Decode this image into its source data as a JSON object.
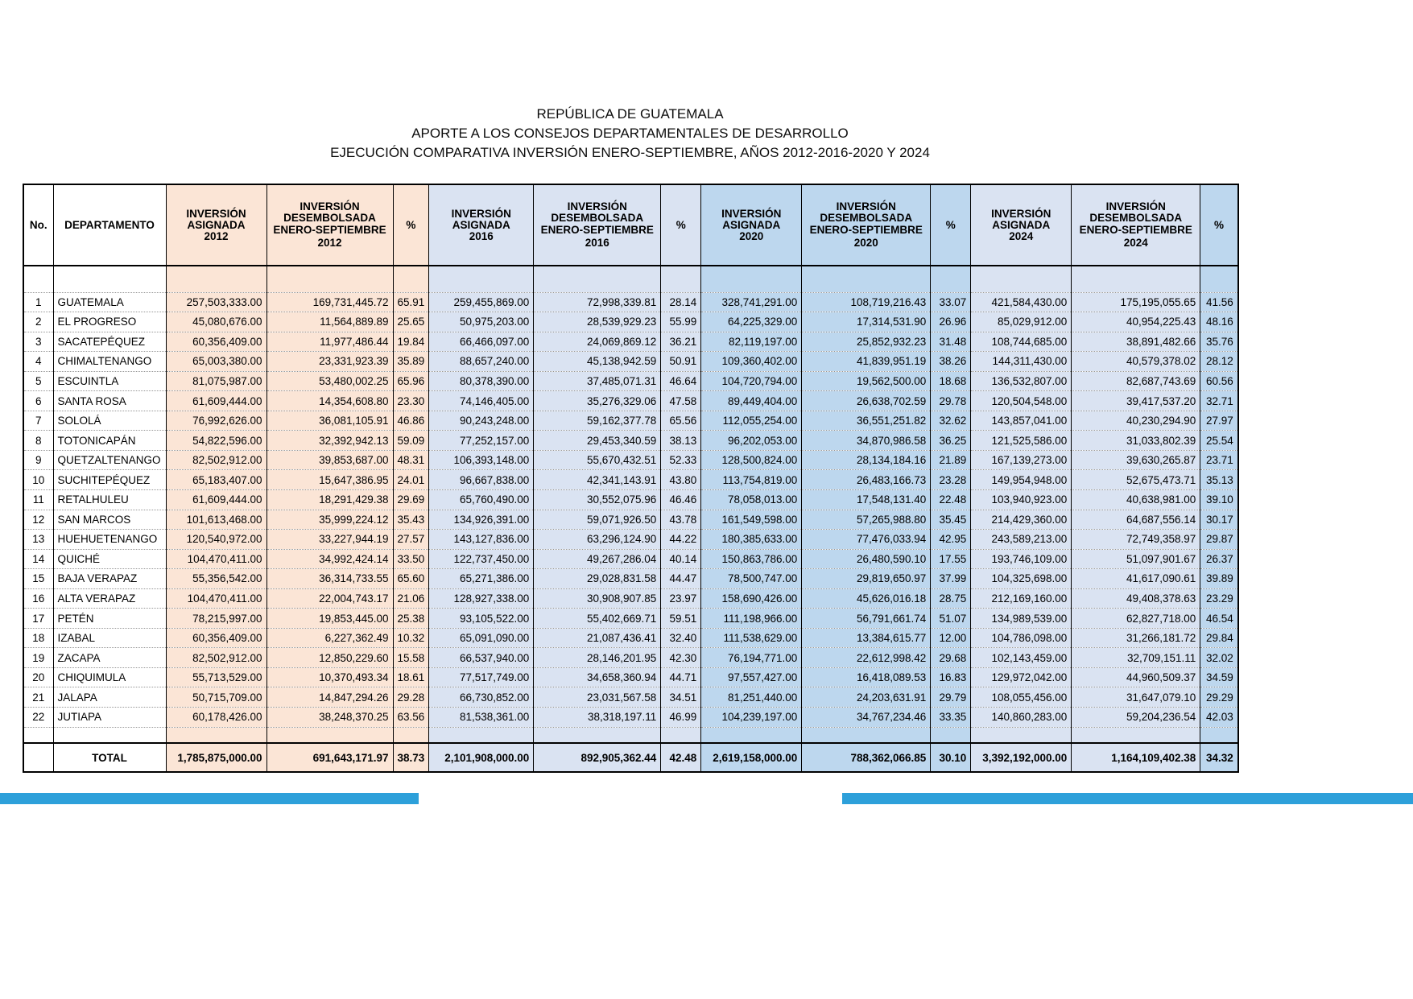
{
  "title": {
    "line1": "REPÚBLICA DE GUATEMALA",
    "line2": "APORTE A LOS CONSEJOS DEPARTAMENTALES DE DESARROLLO",
    "line3": "EJECUCIÓN COMPARATIVA INVERSIÓN ENERO-SEPTIEMBRE, AÑOS 2012-2016-2020 Y 2024"
  },
  "colors": {
    "group_2012": "#fbe5d6",
    "group_2016": "#dae3f2",
    "group_2020": "#bdd7ee",
    "group_2024": "#dae3f2",
    "pct_2024": "#bdd7ee",
    "accent_bar": "#2da0da",
    "border": "#000000",
    "dotted_separator": "#969696"
  },
  "table": {
    "fixed_headers": {
      "no": "No.",
      "departamento": "DEPARTAMENTO"
    },
    "year_groups": [
      {
        "year": "2012",
        "asignada_l1": "INVERSIÓN",
        "asignada_l2": "ASIGNADA",
        "desembolsada_l1": "INVERSIÓN",
        "desembolsada_l2": "DESEMBOLSADA",
        "desembolsada_l3": "ENERO-SEPTIEMBRE",
        "pct": "%"
      },
      {
        "year": "2016",
        "asignada_l1": "INVERSIÓN",
        "asignada_l2": "ASIGNADA",
        "desembolsada_l1": "INVERSIÓN",
        "desembolsada_l2": "DESEMBOLSADA",
        "desembolsada_l3": "ENERO-SEPTIEMBRE",
        "pct": "%"
      },
      {
        "year": "2020",
        "asignada_l1": "INVERSIÓN",
        "asignada_l2": "ASIGNADA",
        "desembolsada_l1": "INVERSIÓN",
        "desembolsada_l2": "DESEMBOLSADA",
        "desembolsada_l3": "ENERO-SEPTIEMBRE",
        "pct": "%"
      },
      {
        "year": "2024",
        "asignada_l1": "INVERSIÓN",
        "asignada_l2": "ASIGNADA",
        "desembolsada_l1": "INVERSIÓN",
        "desembolsada_l2": "DESEMBOLSADA",
        "desembolsada_l3": "ENERO-SEPTIEMBRE",
        "pct": "%"
      }
    ],
    "rows": [
      {
        "no": "1",
        "dept": "GUATEMALA",
        "values": [
          "257,503,333.00",
          "169,731,445.72",
          "65.91",
          "259,455,869.00",
          "72,998,339.81",
          "28.14",
          "328,741,291.00",
          "108,719,216.43",
          "33.07",
          "421,584,430.00",
          "175,195,055.65",
          "41.56"
        ]
      },
      {
        "no": "2",
        "dept": "EL PROGRESO",
        "values": [
          "45,080,676.00",
          "11,564,889.89",
          "25.65",
          "50,975,203.00",
          "28,539,929.23",
          "55.99",
          "64,225,329.00",
          "17,314,531.90",
          "26.96",
          "85,029,912.00",
          "40,954,225.43",
          "48.16"
        ]
      },
      {
        "no": "3",
        "dept": "SACATEPÉQUEZ",
        "values": [
          "60,356,409.00",
          "11,977,486.44",
          "19.84",
          "66,466,097.00",
          "24,069,869.12",
          "36.21",
          "82,119,197.00",
          "25,852,932.23",
          "31.48",
          "108,744,685.00",
          "38,891,482.66",
          "35.76"
        ]
      },
      {
        "no": "4",
        "dept": "CHIMALTENANGO",
        "values": [
          "65,003,380.00",
          "23,331,923.39",
          "35.89",
          "88,657,240.00",
          "45,138,942.59",
          "50.91",
          "109,360,402.00",
          "41,839,951.19",
          "38.26",
          "144,311,430.00",
          "40,579,378.02",
          "28.12"
        ]
      },
      {
        "no": "5",
        "dept": "ESCUINTLA",
        "values": [
          "81,075,987.00",
          "53,480,002.25",
          "65.96",
          "80,378,390.00",
          "37,485,071.31",
          "46.64",
          "104,720,794.00",
          "19,562,500.00",
          "18.68",
          "136,532,807.00",
          "82,687,743.69",
          "60.56"
        ]
      },
      {
        "no": "6",
        "dept": "SANTA ROSA",
        "values": [
          "61,609,444.00",
          "14,354,608.80",
          "23.30",
          "74,146,405.00",
          "35,276,329.06",
          "47.58",
          "89,449,404.00",
          "26,638,702.59",
          "29.78",
          "120,504,548.00",
          "39,417,537.20",
          "32.71"
        ]
      },
      {
        "no": "7",
        "dept": "SOLOLÁ",
        "values": [
          "76,992,626.00",
          "36,081,105.91",
          "46.86",
          "90,243,248.00",
          "59,162,377.78",
          "65.56",
          "112,055,254.00",
          "36,551,251.82",
          "32.62",
          "143,857,041.00",
          "40,230,294.90",
          "27.97"
        ]
      },
      {
        "no": "8",
        "dept": "TOTONICAPÁN",
        "values": [
          "54,822,596.00",
          "32,392,942.13",
          "59.09",
          "77,252,157.00",
          "29,453,340.59",
          "38.13",
          "96,202,053.00",
          "34,870,986.58",
          "36.25",
          "121,525,586.00",
          "31,033,802.39",
          "25.54"
        ]
      },
      {
        "no": "9",
        "dept": "QUETZALTENANGO",
        "values": [
          "82,502,912.00",
          "39,853,687.00",
          "48.31",
          "106,393,148.00",
          "55,670,432.51",
          "52.33",
          "128,500,824.00",
          "28,134,184.16",
          "21.89",
          "167,139,273.00",
          "39,630,265.87",
          "23.71"
        ]
      },
      {
        "no": "10",
        "dept": "SUCHITEPÉQUEZ",
        "values": [
          "65,183,407.00",
          "15,647,386.95",
          "24.01",
          "96,667,838.00",
          "42,341,143.91",
          "43.80",
          "113,754,819.00",
          "26,483,166.73",
          "23.28",
          "149,954,948.00",
          "52,675,473.71",
          "35.13"
        ]
      },
      {
        "no": "11",
        "dept": "RETALHULEU",
        "values": [
          "61,609,444.00",
          "18,291,429.38",
          "29.69",
          "65,760,490.00",
          "30,552,075.96",
          "46.46",
          "78,058,013.00",
          "17,548,131.40",
          "22.48",
          "103,940,923.00",
          "40,638,981.00",
          "39.10"
        ]
      },
      {
        "no": "12",
        "dept": "SAN MARCOS",
        "values": [
          "101,613,468.00",
          "35,999,224.12",
          "35.43",
          "134,926,391.00",
          "59,071,926.50",
          "43.78",
          "161,549,598.00",
          "57,265,988.80",
          "35.45",
          "214,429,360.00",
          "64,687,556.14",
          "30.17"
        ]
      },
      {
        "no": "13",
        "dept": "HUEHUETENANGO",
        "values": [
          "120,540,972.00",
          "33,227,944.19",
          "27.57",
          "143,127,836.00",
          "63,296,124.90",
          "44.22",
          "180,385,633.00",
          "77,476,033.94",
          "42.95",
          "243,589,213.00",
          "72,749,358.97",
          "29.87"
        ]
      },
      {
        "no": "14",
        "dept": "QUICHÉ",
        "values": [
          "104,470,411.00",
          "34,992,424.14",
          "33.50",
          "122,737,450.00",
          "49,267,286.04",
          "40.14",
          "150,863,786.00",
          "26,480,590.10",
          "17.55",
          "193,746,109.00",
          "51,097,901.67",
          "26.37"
        ]
      },
      {
        "no": "15",
        "dept": "BAJA VERAPAZ",
        "values": [
          "55,356,542.00",
          "36,314,733.55",
          "65.60",
          "65,271,386.00",
          "29,028,831.58",
          "44.47",
          "78,500,747.00",
          "29,819,650.97",
          "37.99",
          "104,325,698.00",
          "41,617,090.61",
          "39.89"
        ]
      },
      {
        "no": "16",
        "dept": "ALTA VERAPAZ",
        "values": [
          "104,470,411.00",
          "22,004,743.17",
          "21.06",
          "128,927,338.00",
          "30,908,907.85",
          "23.97",
          "158,690,426.00",
          "45,626,016.18",
          "28.75",
          "212,169,160.00",
          "49,408,378.63",
          "23.29"
        ]
      },
      {
        "no": "17",
        "dept": "PETÉN",
        "values": [
          "78,215,997.00",
          "19,853,445.00",
          "25.38",
          "93,105,522.00",
          "55,402,669.71",
          "59.51",
          "111,198,966.00",
          "56,791,661.74",
          "51.07",
          "134,989,539.00",
          "62,827,718.00",
          "46.54"
        ]
      },
      {
        "no": "18",
        "dept": "IZABAL",
        "values": [
          "60,356,409.00",
          "6,227,362.49",
          "10.32",
          "65,091,090.00",
          "21,087,436.41",
          "32.40",
          "111,538,629.00",
          "13,384,615.77",
          "12.00",
          "104,786,098.00",
          "31,266,181.72",
          "29.84"
        ]
      },
      {
        "no": "19",
        "dept": "ZACAPA",
        "values": [
          "82,502,912.00",
          "12,850,229.60",
          "15.58",
          "66,537,940.00",
          "28,146,201.95",
          "42.30",
          "76,194,771.00",
          "22,612,998.42",
          "29.68",
          "102,143,459.00",
          "32,709,151.11",
          "32.02"
        ]
      },
      {
        "no": "20",
        "dept": "CHIQUIMULA",
        "values": [
          "55,713,529.00",
          "10,370,493.34",
          "18.61",
          "77,517,749.00",
          "34,658,360.94",
          "44.71",
          "97,557,427.00",
          "16,418,089.53",
          "16.83",
          "129,972,042.00",
          "44,960,509.37",
          "34.59"
        ]
      },
      {
        "no": "21",
        "dept": "JALAPA",
        "values": [
          "50,715,709.00",
          "14,847,294.26",
          "29.28",
          "66,730,852.00",
          "23,031,567.58",
          "34.51",
          "81,251,440.00",
          "24,203,631.91",
          "29.79",
          "108,055,456.00",
          "31,647,079.10",
          "29.29"
        ]
      },
      {
        "no": "22",
        "dept": "JUTIAPA",
        "values": [
          "60,178,426.00",
          "38,248,370.25",
          "63.56",
          "81,538,361.00",
          "38,318,197.11",
          "46.99",
          "104,239,197.00",
          "34,767,234.46",
          "33.35",
          "140,860,283.00",
          "59,204,236.54",
          "42.03"
        ]
      }
    ],
    "total": {
      "label": "TOTAL",
      "values": [
        "1,785,875,000.00",
        "691,643,171.97",
        "38.73",
        "2,101,908,000.00",
        "892,905,362.44",
        "42.48",
        "2,619,158,000.00",
        "788,362,066.85",
        "30.10",
        "3,392,192,000.00",
        "1,164,109,402.38",
        "34.32"
      ]
    }
  }
}
